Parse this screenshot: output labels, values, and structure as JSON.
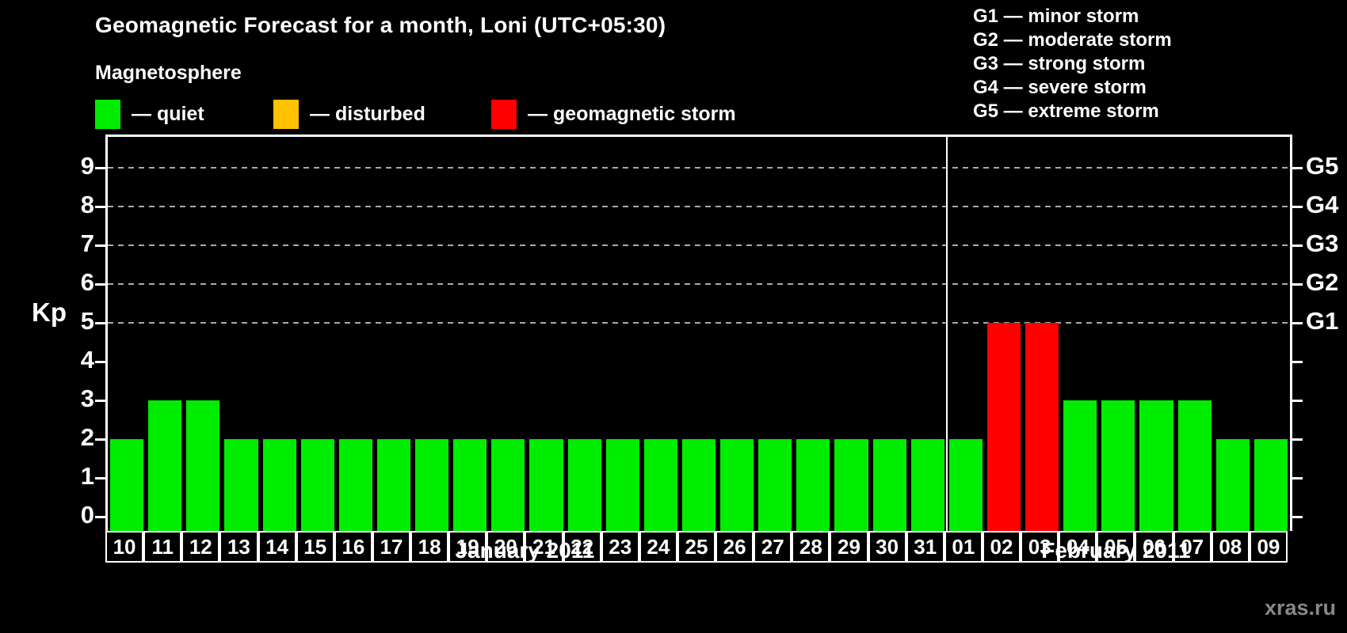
{
  "title": "Geomagnetic Forecast for a month, Loni (UTC+05:30)",
  "magnetosphere": {
    "heading": "Magnetosphere",
    "items": [
      {
        "status": "quiet",
        "label": "— quiet"
      },
      {
        "status": "disturbed",
        "label": "— disturbed"
      },
      {
        "status": "storm",
        "label": "— geomagnetic storm"
      }
    ]
  },
  "g_legend": [
    "G1 — minor storm",
    "G2 — moderate storm",
    "G3 — strong storm",
    "G4 — severe storm",
    "G5 — extreme storm"
  ],
  "watermark": "xras.ru",
  "chart_data": {
    "type": "bar",
    "ylabel": "Kp",
    "ylim": [
      0,
      9
    ],
    "y_ticks": [
      0,
      1,
      2,
      3,
      4,
      5,
      6,
      7,
      8,
      9
    ],
    "g_levels": [
      {
        "kp": 5,
        "label": "G1"
      },
      {
        "kp": 6,
        "label": "G2"
      },
      {
        "kp": 7,
        "label": "G3"
      },
      {
        "kp": 8,
        "label": "G4"
      },
      {
        "kp": 9,
        "label": "G5"
      }
    ],
    "status_colors": {
      "quiet": "#00ec00",
      "disturbed": "#ffc100",
      "storm": "#ff0000"
    },
    "grid": "dashed-at-g-levels",
    "legend_position": "top",
    "months": [
      {
        "label": "January 2011",
        "days": [
          "10",
          "11",
          "12",
          "13",
          "14",
          "15",
          "16",
          "17",
          "18",
          "19",
          "20",
          "21",
          "22",
          "23",
          "24",
          "25",
          "26",
          "27",
          "28",
          "29",
          "30",
          "31"
        ],
        "values": [
          2,
          3,
          3,
          2,
          2,
          2,
          2,
          2,
          2,
          2,
          2,
          2,
          2,
          2,
          2,
          2,
          2,
          2,
          2,
          2,
          2,
          2
        ],
        "statuses": [
          "quiet",
          "quiet",
          "quiet",
          "quiet",
          "quiet",
          "quiet",
          "quiet",
          "quiet",
          "quiet",
          "quiet",
          "quiet",
          "quiet",
          "quiet",
          "quiet",
          "quiet",
          "quiet",
          "quiet",
          "quiet",
          "quiet",
          "quiet",
          "quiet",
          "quiet"
        ]
      },
      {
        "label": "February 2011",
        "days": [
          "01",
          "02",
          "03",
          "04",
          "05",
          "06",
          "07",
          "08",
          "09"
        ],
        "values": [
          2,
          5,
          5,
          3,
          3,
          3,
          3,
          2,
          2
        ],
        "statuses": [
          "quiet",
          "storm",
          "storm",
          "quiet",
          "quiet",
          "quiet",
          "quiet",
          "quiet",
          "quiet"
        ]
      }
    ]
  }
}
